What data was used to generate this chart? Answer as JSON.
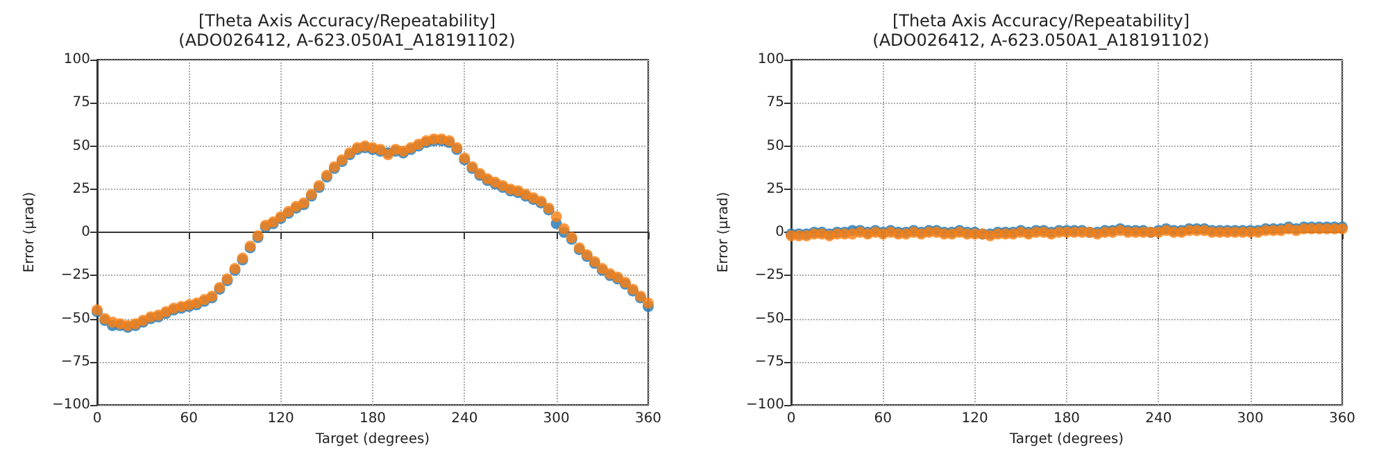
{
  "chart_data": [
    {
      "type": "scatter",
      "title": "[Theta Axis Accuracy/Repeatability]",
      "subtitle": "(ADO026412, A-623.050A1_A18191102)",
      "xlabel": "Target (degrees)",
      "ylabel": "Error (µrad)",
      "xlim": [
        0,
        360
      ],
      "xticks": [
        0,
        60,
        120,
        180,
        240,
        300,
        360
      ],
      "ylim": [
        -100,
        100
      ],
      "yticks": [
        -100,
        -75,
        -50,
        -25,
        0,
        25,
        50,
        75,
        100
      ],
      "grid": true,
      "marker": "circle",
      "x": [
        0,
        5,
        10,
        15,
        20,
        25,
        30,
        35,
        40,
        45,
        50,
        55,
        60,
        65,
        70,
        75,
        80,
        85,
        90,
        95,
        100,
        105,
        110,
        115,
        120,
        125,
        130,
        135,
        140,
        145,
        150,
        155,
        160,
        165,
        170,
        175,
        180,
        185,
        190,
        195,
        200,
        205,
        210,
        215,
        220,
        225,
        230,
        235,
        240,
        245,
        250,
        255,
        260,
        265,
        270,
        275,
        280,
        285,
        290,
        295,
        300,
        305,
        310,
        315,
        320,
        325,
        330,
        335,
        340,
        345,
        350,
        355,
        360
      ],
      "series": [
        {
          "color": "#1f77b4",
          "values": [
            -46,
            -51,
            -54,
            -54,
            -55,
            -54,
            -52,
            -50,
            -49,
            -47,
            -45,
            -44,
            -43,
            -42,
            -40,
            -38,
            -33,
            -28,
            -22,
            -16,
            -9,
            -3,
            3,
            5,
            8,
            11,
            14,
            16,
            21,
            26,
            32,
            37,
            41,
            45,
            48,
            49,
            48,
            47,
            46,
            47,
            46,
            48,
            50,
            52,
            53,
            53,
            52,
            48,
            42,
            37,
            33,
            30,
            28,
            26,
            24,
            23,
            21,
            19,
            17,
            13,
            5,
            0,
            -4,
            -10,
            -14,
            -18,
            -22,
            -25,
            -27,
            -30,
            -34,
            -38,
            -43
          ]
        },
        {
          "color": "#ff7f0e",
          "values": [
            -45,
            -50,
            -52,
            -53,
            -54,
            -53,
            -51,
            -49,
            -48,
            -46,
            -44,
            -43,
            -42,
            -41,
            -39,
            -37,
            -32,
            -27,
            -21,
            -15,
            -8,
            -2,
            4,
            6,
            9,
            12,
            15,
            17,
            22,
            27,
            33,
            38,
            42,
            46,
            49,
            50,
            49,
            48,
            45,
            48,
            47,
            49,
            51,
            53,
            54,
            54,
            53,
            49,
            43,
            38,
            34,
            31,
            29,
            27,
            25,
            24,
            22,
            20,
            18,
            14,
            9,
            2,
            -3,
            -9,
            -13,
            -17,
            -21,
            -24,
            -26,
            -29,
            -33,
            -37,
            -41
          ]
        }
      ]
    },
    {
      "type": "scatter",
      "title": "[Theta Axis Accuracy/Repeatability]",
      "subtitle": "(ADO026412, A-623.050A1_A18191102)",
      "xlabel": "Target (degrees)",
      "ylabel": "Error (µrad)",
      "xlim": [
        0,
        360
      ],
      "xticks": [
        0,
        60,
        120,
        180,
        240,
        300,
        360
      ],
      "ylim": [
        -100,
        100
      ],
      "yticks": [
        -100,
        -75,
        -50,
        -25,
        0,
        25,
        50,
        75,
        100
      ],
      "grid": true,
      "marker": "circle",
      "x": [
        0,
        5,
        10,
        15,
        20,
        25,
        30,
        35,
        40,
        45,
        50,
        55,
        60,
        65,
        70,
        75,
        80,
        85,
        90,
        95,
        100,
        105,
        110,
        115,
        120,
        125,
        130,
        135,
        140,
        145,
        150,
        155,
        160,
        165,
        170,
        175,
        180,
        185,
        190,
        195,
        200,
        205,
        210,
        215,
        220,
        225,
        230,
        235,
        240,
        245,
        250,
        255,
        260,
        265,
        270,
        275,
        280,
        285,
        290,
        295,
        300,
        305,
        310,
        315,
        320,
        325,
        330,
        335,
        340,
        345,
        350,
        355,
        360
      ],
      "series": [
        {
          "color": "#1f77b4",
          "values": [
            -1,
            -1,
            -1,
            0,
            0,
            -1,
            0,
            0,
            1,
            1,
            0,
            1,
            0,
            1,
            0,
            0,
            1,
            0,
            1,
            1,
            0,
            0,
            1,
            0,
            0,
            -1,
            -1,
            0,
            0,
            0,
            1,
            0,
            1,
            1,
            0,
            1,
            1,
            1,
            1,
            0,
            0,
            1,
            1,
            2,
            1,
            1,
            1,
            0,
            1,
            2,
            1,
            1,
            2,
            2,
            2,
            1,
            1,
            1,
            1,
            1,
            1,
            1,
            2,
            2,
            2,
            3,
            2,
            3,
            3,
            3,
            3,
            3,
            3
          ]
        },
        {
          "color": "#ff7f0e",
          "values": [
            -2,
            -2,
            -2,
            -1,
            -1,
            -2,
            -1,
            -1,
            -1,
            0,
            -1,
            0,
            -1,
            0,
            -1,
            -1,
            0,
            -1,
            0,
            0,
            -1,
            -1,
            0,
            -1,
            -1,
            -1,
            -2,
            -1,
            -1,
            -1,
            0,
            -1,
            0,
            0,
            -1,
            0,
            0,
            0,
            0,
            0,
            -1,
            0,
            0,
            1,
            0,
            0,
            0,
            0,
            0,
            1,
            0,
            0,
            1,
            1,
            1,
            0,
            0,
            0,
            0,
            0,
            0,
            0,
            1,
            1,
            1,
            2,
            1,
            2,
            2,
            2,
            2,
            2,
            2
          ]
        }
      ]
    }
  ]
}
